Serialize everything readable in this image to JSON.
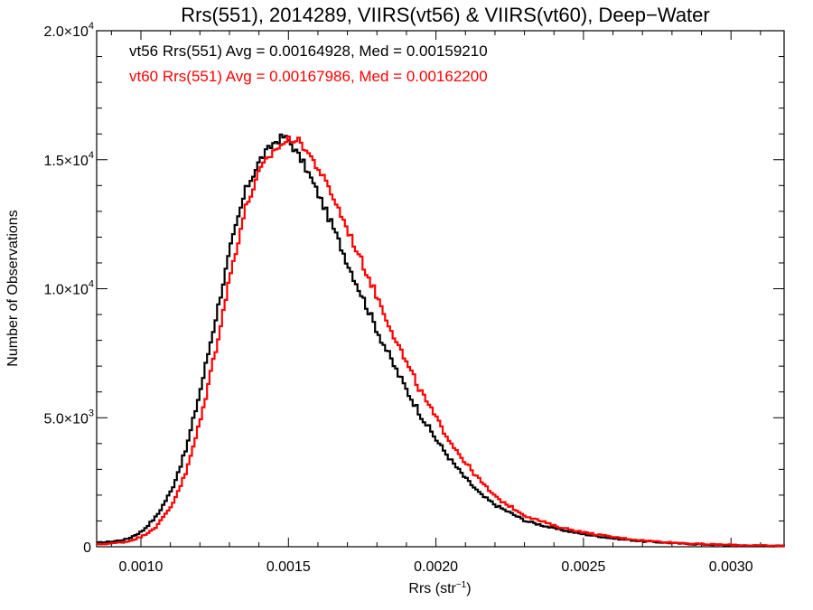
{
  "chart_data": {
    "type": "line",
    "title": "Rrs(551), 2014289, VIIRS(vt56) & VIIRS(vt60), Deep−Water",
    "xlabel": "Rrs (str",
    "xlabel_sup": "−1",
    "xlabel_close": ")",
    "ylabel": "Number of Observations",
    "xlim": [
      0.00085,
      0.00318
    ],
    "ylim": [
      0,
      20000
    ],
    "grid": false,
    "x_ticks": [
      {
        "value": 0.001,
        "label": "0.0010"
      },
      {
        "value": 0.0015,
        "label": "0.0015"
      },
      {
        "value": 0.002,
        "label": "0.0020"
      },
      {
        "value": 0.0025,
        "label": "0.0025"
      },
      {
        "value": 0.003,
        "label": "0.0030"
      }
    ],
    "y_ticks": [
      {
        "value": 0,
        "base": "0",
        "exp": ""
      },
      {
        "value": 5000,
        "base": "5.0×10",
        "exp": "3"
      },
      {
        "value": 10000,
        "base": "1.0×10",
        "exp": "4"
      },
      {
        "value": 15000,
        "base": "1.5×10",
        "exp": "4"
      },
      {
        "value": 20000,
        "base": "2.0×10",
        "exp": "4"
      }
    ],
    "annotations": [
      {
        "text": "vt56 Rrs(551) Avg = 0.00164928, Med = 0.00159210",
        "color": "#000000"
      },
      {
        "text": "vt60 Rrs(551) Avg = 0.00167986, Med = 0.00162200",
        "color": "#ff0000"
      }
    ],
    "series": [
      {
        "color": "#000000",
        "step": true,
        "x": [
          0.00085,
          0.0009,
          0.00095,
          0.001,
          0.00105,
          0.0011,
          0.00115,
          0.0012,
          0.00125,
          0.0013,
          0.00135,
          0.0014,
          0.00145,
          0.00148,
          0.0015,
          0.00155,
          0.0016,
          0.00165,
          0.0017,
          0.00175,
          0.0018,
          0.00185,
          0.0019,
          0.00195,
          0.002,
          0.00205,
          0.0021,
          0.00215,
          0.0022,
          0.0023,
          0.0024,
          0.0025,
          0.0026,
          0.0027,
          0.0028,
          0.0029,
          0.003,
          0.0031,
          0.00318
        ],
        "y": [
          150,
          200,
          300,
          600,
          1200,
          2200,
          3800,
          6200,
          8900,
          11600,
          13800,
          15000,
          15700,
          15900,
          15700,
          14800,
          13600,
          12300,
          10900,
          9600,
          8300,
          7100,
          6000,
          5000,
          4100,
          3300,
          2600,
          2000,
          1600,
          1000,
          700,
          480,
          320,
          210,
          140,
          90,
          60,
          40,
          30
        ]
      },
      {
        "color": "#ff0000",
        "step": true,
        "x": [
          0.00085,
          0.0009,
          0.00095,
          0.001,
          0.00105,
          0.0011,
          0.00115,
          0.0012,
          0.00125,
          0.0013,
          0.00135,
          0.0014,
          0.00145,
          0.0015,
          0.00152,
          0.00155,
          0.0016,
          0.00165,
          0.0017,
          0.00175,
          0.0018,
          0.00185,
          0.0019,
          0.00195,
          0.002,
          0.00205,
          0.0021,
          0.00215,
          0.0022,
          0.0023,
          0.0024,
          0.0025,
          0.0026,
          0.0027,
          0.0028,
          0.0029,
          0.003,
          0.0031,
          0.00318
        ],
        "y": [
          90,
          130,
          200,
          400,
          800,
          1600,
          2900,
          5000,
          7700,
          10600,
          13100,
          14600,
          15400,
          15800,
          15800,
          15500,
          14600,
          13500,
          12200,
          10900,
          9600,
          8300,
          7000,
          5900,
          4900,
          4000,
          3200,
          2500,
          1900,
          1200,
          800,
          550,
          370,
          240,
          160,
          100,
          70,
          45,
          30
        ]
      }
    ]
  }
}
